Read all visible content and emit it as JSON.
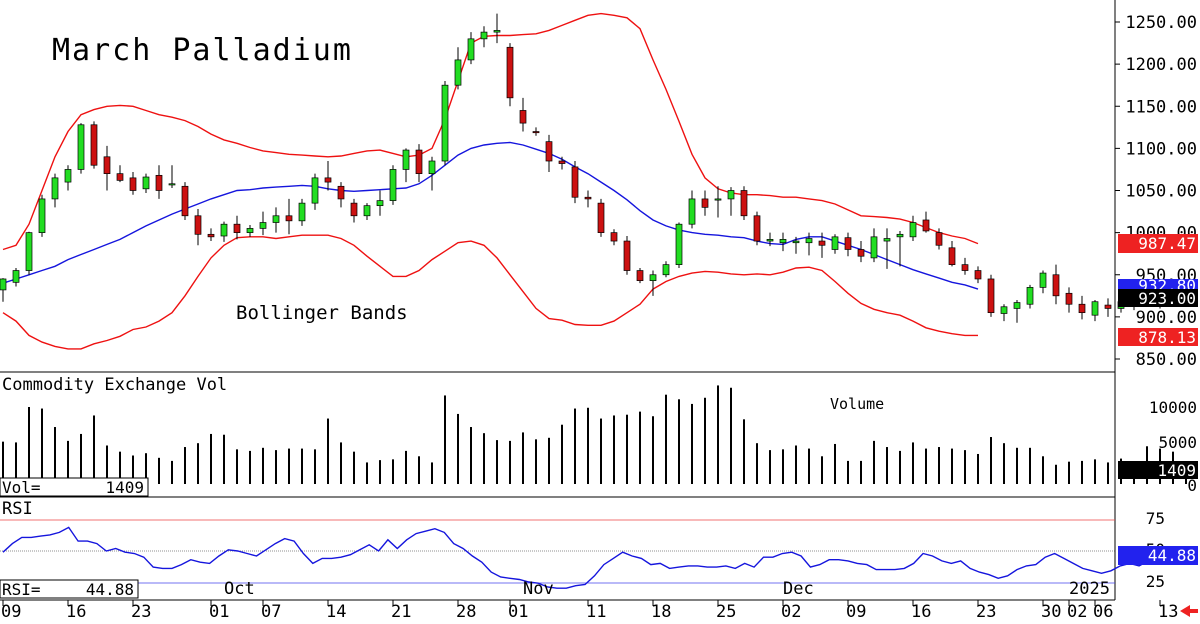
{
  "title": "March Palladium",
  "indicator_label": "Bollinger Bands",
  "volume_panel": {
    "label": "Commodity Exchange Vol",
    "series_label": "Volume",
    "readout_label": "Vol=",
    "readout_value": "1409",
    "last_value": "1409",
    "ticks": [
      "10000",
      "5000",
      "0"
    ]
  },
  "rsi_panel": {
    "label": "RSI",
    "readout_label": "RSI=",
    "readout_value": "44.88",
    "last_value": "44.88",
    "ticks": [
      "75",
      "50",
      "25"
    ]
  },
  "price_badges": {
    "upper": "987.47",
    "middle": "932.80",
    "close": "923.00",
    "lower": "878.13"
  },
  "colors": {
    "up": "#22dd22",
    "down": "#cc1111",
    "bollinger_outer": "#ee1111",
    "bollinger_middle": "#1515dd",
    "rsi_line": "#1515dd",
    "volume_bar": "#000000",
    "badge_upper": "#ee2222",
    "badge_middle": "#2222ee",
    "badge_close": "#000000",
    "badge_lower": "#ee2222",
    "nav_arrow": "#ee2222"
  },
  "nav_icon": "left-arrow-icon",
  "chart_data": {
    "type": "candlestick",
    "title": "March Palladium",
    "y_axis": {
      "ticks": [
        "1250.00",
        "1200.00",
        "1150.00",
        "1100.00",
        "1050.00",
        "1000.00",
        "950.00",
        "900.00",
        "850.00"
      ],
      "range": [
        835,
        1265
      ]
    },
    "x_tick_labels": [
      {
        "label": "09",
        "day": 0
      },
      {
        "label": "16",
        "day": 5
      },
      {
        "label": "23",
        "day": 10
      },
      {
        "label": "01",
        "day": 16
      },
      {
        "label": "07",
        "day": 20
      },
      {
        "label": "14",
        "day": 25
      },
      {
        "label": "21",
        "day": 30
      },
      {
        "label": "28",
        "day": 35
      },
      {
        "label": "01",
        "day": 39
      },
      {
        "label": "11",
        "day": 45
      },
      {
        "label": "18",
        "day": 50
      },
      {
        "label": "25",
        "day": 55
      },
      {
        "label": "02",
        "day": 60
      },
      {
        "label": "09",
        "day": 65
      },
      {
        "label": "16",
        "day": 70
      },
      {
        "label": "23",
        "day": 75
      },
      {
        "label": "30",
        "day": 80
      },
      {
        "label": "02",
        "day": 82
      },
      {
        "label": "06",
        "day": 84
      },
      {
        "label": "13",
        "day": 89
      }
    ],
    "month_labels": [
      {
        "label": "Oct",
        "day": 17
      },
      {
        "label": "Nov",
        "day": 40
      },
      {
        "label": "Dec",
        "day": 60
      },
      {
        "label": "2025",
        "day": 82
      }
    ],
    "candles": [
      [
        932,
        946,
        918,
        945
      ],
      [
        941,
        958,
        936,
        955
      ],
      [
        955,
        1001,
        950,
        1000
      ],
      [
        1000,
        1045,
        995,
        1040
      ],
      [
        1040,
        1070,
        1030,
        1065
      ],
      [
        1060,
        1080,
        1050,
        1075
      ],
      [
        1075,
        1130,
        1070,
        1128
      ],
      [
        1128,
        1132,
        1076,
        1080
      ],
      [
        1090,
        1103,
        1050,
        1070
      ],
      [
        1070,
        1080,
        1060,
        1062
      ],
      [
        1065,
        1072,
        1045,
        1050
      ],
      [
        1052,
        1070,
        1047,
        1066
      ],
      [
        1068,
        1080,
        1040,
        1050
      ],
      [
        1057,
        1080,
        1053,
        1058
      ],
      [
        1055,
        1060,
        1015,
        1020
      ],
      [
        1020,
        1028,
        985,
        998
      ],
      [
        998,
        1005,
        990,
        995
      ],
      [
        996,
        1013,
        989,
        1010
      ],
      [
        1010,
        1020,
        992,
        1000
      ],
      [
        1000,
        1009,
        995,
        1005
      ],
      [
        1005,
        1025,
        997,
        1012
      ],
      [
        1012,
        1030,
        1000,
        1020
      ],
      [
        1020,
        1040,
        998,
        1014
      ],
      [
        1014,
        1040,
        1008,
        1035
      ],
      [
        1035,
        1070,
        1027,
        1065
      ],
      [
        1065,
        1085,
        1050,
        1060
      ],
      [
        1055,
        1060,
        1030,
        1040
      ],
      [
        1035,
        1040,
        1012,
        1020
      ],
      [
        1020,
        1035,
        1015,
        1032
      ],
      [
        1032,
        1050,
        1020,
        1038
      ],
      [
        1038,
        1080,
        1033,
        1075
      ],
      [
        1075,
        1100,
        1060,
        1098
      ],
      [
        1098,
        1105,
        1060,
        1070
      ],
      [
        1070,
        1090,
        1050,
        1085
      ],
      [
        1085,
        1180,
        1080,
        1175
      ],
      [
        1175,
        1220,
        1170,
        1205
      ],
      [
        1205,
        1238,
        1200,
        1230
      ],
      [
        1230,
        1245,
        1220,
        1238
      ],
      [
        1238,
        1260,
        1225,
        1240
      ],
      [
        1220,
        1225,
        1150,
        1160
      ],
      [
        1145,
        1160,
        1120,
        1130
      ],
      [
        1120,
        1125,
        1115,
        1119
      ],
      [
        1108,
        1116,
        1072,
        1085
      ],
      [
        1085,
        1090,
        1075,
        1082
      ],
      [
        1078,
        1085,
        1035,
        1042
      ],
      [
        1042,
        1050,
        1030,
        1040
      ],
      [
        1035,
        1040,
        995,
        1000
      ],
      [
        1000,
        1004,
        985,
        990
      ],
      [
        990,
        996,
        950,
        955
      ],
      [
        955,
        958,
        940,
        943
      ],
      [
        943,
        955,
        925,
        950
      ],
      [
        950,
        966,
        947,
        962
      ],
      [
        962,
        1012,
        958,
        1010
      ],
      [
        1010,
        1050,
        1005,
        1040
      ],
      [
        1040,
        1050,
        1020,
        1030
      ],
      [
        1040,
        1055,
        1018,
        1040
      ],
      [
        1040,
        1054,
        1020,
        1050
      ],
      [
        1050,
        1055,
        1015,
        1020
      ],
      [
        1020,
        1025,
        985,
        990
      ],
      [
        990,
        1000,
        984,
        992
      ],
      [
        988,
        1000,
        978,
        992
      ],
      [
        988,
        995,
        975,
        990
      ],
      [
        988,
        1000,
        973,
        993
      ],
      [
        990,
        1000,
        970,
        985
      ],
      [
        980,
        998,
        975,
        995
      ],
      [
        994,
        1000,
        972,
        980
      ],
      [
        980,
        990,
        965,
        972
      ],
      [
        970,
        1005,
        965,
        995
      ],
      [
        990,
        1005,
        957,
        993
      ],
      [
        995,
        1002,
        960,
        998
      ],
      [
        995,
        1020,
        990,
        1012
      ],
      [
        1015,
        1025,
        1000,
        1002
      ],
      [
        1000,
        1005,
        980,
        985
      ],
      [
        982,
        990,
        960,
        962
      ],
      [
        962,
        970,
        950,
        955
      ],
      [
        955,
        960,
        940,
        945
      ],
      [
        945,
        950,
        900,
        905
      ],
      [
        904,
        915,
        895,
        912
      ],
      [
        910,
        920,
        893,
        917
      ],
      [
        915,
        938,
        910,
        935
      ],
      [
        935,
        955,
        928,
        952
      ],
      [
        950,
        962,
        915,
        925
      ],
      [
        928,
        935,
        905,
        915
      ],
      [
        915,
        925,
        897,
        905
      ],
      [
        902,
        920,
        895,
        918
      ],
      [
        914,
        922,
        900,
        910
      ],
      [
        910,
        925,
        905,
        918
      ],
      [
        920,
        930,
        908,
        925
      ],
      [
        923,
        944,
        918,
        923
      ],
      [
        920,
        935,
        910,
        928
      ],
      [
        928,
        935,
        912,
        922
      ],
      [
        928,
        930,
        912,
        923
      ]
    ],
    "bollinger": {
      "upper": [
        980,
        985,
        1010,
        1050,
        1090,
        1120,
        1140,
        1146,
        1150,
        1151,
        1150,
        1145,
        1140,
        1137,
        1133,
        1126,
        1117,
        1110,
        1106,
        1101,
        1097,
        1095,
        1093,
        1092,
        1091,
        1090,
        1091,
        1094,
        1097,
        1098,
        1094,
        1090,
        1092,
        1100,
        1135,
        1180,
        1225,
        1233,
        1234,
        1234,
        1235,
        1236,
        1240,
        1246,
        1252,
        1258,
        1260,
        1258,
        1255,
        1242,
        1205,
        1170,
        1132,
        1093,
        1065,
        1052,
        1047,
        1045,
        1045,
        1044,
        1042,
        1042,
        1040,
        1038,
        1034,
        1027,
        1020,
        1019,
        1018,
        1016,
        1012,
        1006,
        1000,
        996,
        993,
        987
      ],
      "middle": [
        940,
        945,
        950,
        955,
        960,
        968,
        974,
        980,
        986,
        992,
        1000,
        1008,
        1015,
        1022,
        1028,
        1034,
        1040,
        1045,
        1050,
        1051,
        1053,
        1054,
        1055,
        1056,
        1055,
        1052,
        1050,
        1049,
        1050,
        1051,
        1052,
        1053,
        1058,
        1068,
        1080,
        1092,
        1100,
        1104,
        1106,
        1107,
        1104,
        1099,
        1094,
        1087,
        1078,
        1070,
        1060,
        1050,
        1039,
        1026,
        1015,
        1008,
        1003,
        1000,
        998,
        997,
        995,
        994,
        990,
        987,
        986,
        992,
        995,
        995,
        990,
        985,
        980,
        974,
        968,
        962,
        956,
        951,
        946,
        941,
        938,
        933
      ],
      "lower": [
        905,
        895,
        878,
        870,
        865,
        862,
        862,
        868,
        872,
        877,
        885,
        888,
        895,
        905,
        925,
        948,
        970,
        985,
        994,
        995,
        995,
        993,
        995,
        997,
        997,
        997,
        993,
        985,
        972,
        960,
        948,
        948,
        955,
        968,
        978,
        988,
        990,
        985,
        970,
        950,
        930,
        910,
        898,
        896,
        891,
        890,
        890,
        895,
        905,
        915,
        933,
        942,
        948,
        952,
        954,
        953,
        951,
        950,
        951,
        950,
        953,
        958,
        959,
        955,
        942,
        928,
        916,
        909,
        905,
        902,
        895,
        887,
        883,
        880,
        878,
        878
      ],
      "start_day": 0
    },
    "volume": [
      5500,
      5400,
      10000,
      9800,
      7400,
      5600,
      6500,
      8900,
      5000,
      4200,
      3700,
      4000,
      3400,
      3000,
      4800,
      5300,
      6500,
      6400,
      4500,
      4300,
      4700,
      4400,
      4600,
      4600,
      4500,
      8500,
      5400,
      4200,
      2800,
      3100,
      3200,
      4300,
      3600,
      2800,
      11500,
      9100,
      7400,
      6600,
      5700,
      5600,
      6700,
      5800,
      6000,
      7700,
      9800,
      9900,
      8500,
      8900,
      9000,
      9400,
      8800,
      11600,
      11000,
      10400,
      11200,
      12800,
      12500,
      8400,
      5300,
      4400,
      4500,
      5000,
      4600,
      3600,
      5200,
      3000,
      3000,
      5600,
      4800,
      4300,
      5400,
      4600,
      4800,
      4600,
      4400,
      3900,
      6100,
      5300,
      4700,
      4700,
      3600,
      2500,
      2900,
      3000,
      3200,
      2800,
      3300,
      2200,
      4900,
      4600,
      4200,
      1409
    ],
    "rsi": [
      49,
      56,
      61,
      61,
      62,
      63,
      65,
      69,
      58,
      58,
      56,
      50,
      52,
      49,
      48,
      45,
      37,
      36,
      36,
      39,
      43,
      41,
      40,
      46,
      51,
      50,
      48,
      46,
      51,
      56,
      60,
      58,
      48,
      40,
      44,
      44,
      45,
      47,
      51,
      55,
      50,
      59,
      52,
      59,
      64,
      66,
      68,
      65,
      56,
      52,
      46,
      41,
      33,
      29,
      28,
      27,
      25,
      24,
      21,
      20,
      20,
      22,
      23,
      30,
      39,
      44,
      49,
      46,
      44,
      39,
      40,
      36,
      37,
      38,
      38,
      37,
      37,
      38,
      36,
      40,
      37,
      45,
      45,
      48,
      49,
      46,
      37,
      39,
      43,
      43,
      42,
      40,
      39,
      35,
      35,
      35,
      36,
      40,
      48,
      46,
      42,
      40,
      42,
      36,
      33,
      31,
      28,
      30,
      35,
      38,
      39,
      45,
      48,
      44,
      40,
      36,
      34,
      32,
      34,
      38,
      40,
      38,
      42,
      44,
      45,
      45,
      44.88
    ],
    "volume_ticks": [
      10000,
      5000,
      0
    ],
    "rsi_ticks": [
      75,
      50,
      25
    ]
  }
}
